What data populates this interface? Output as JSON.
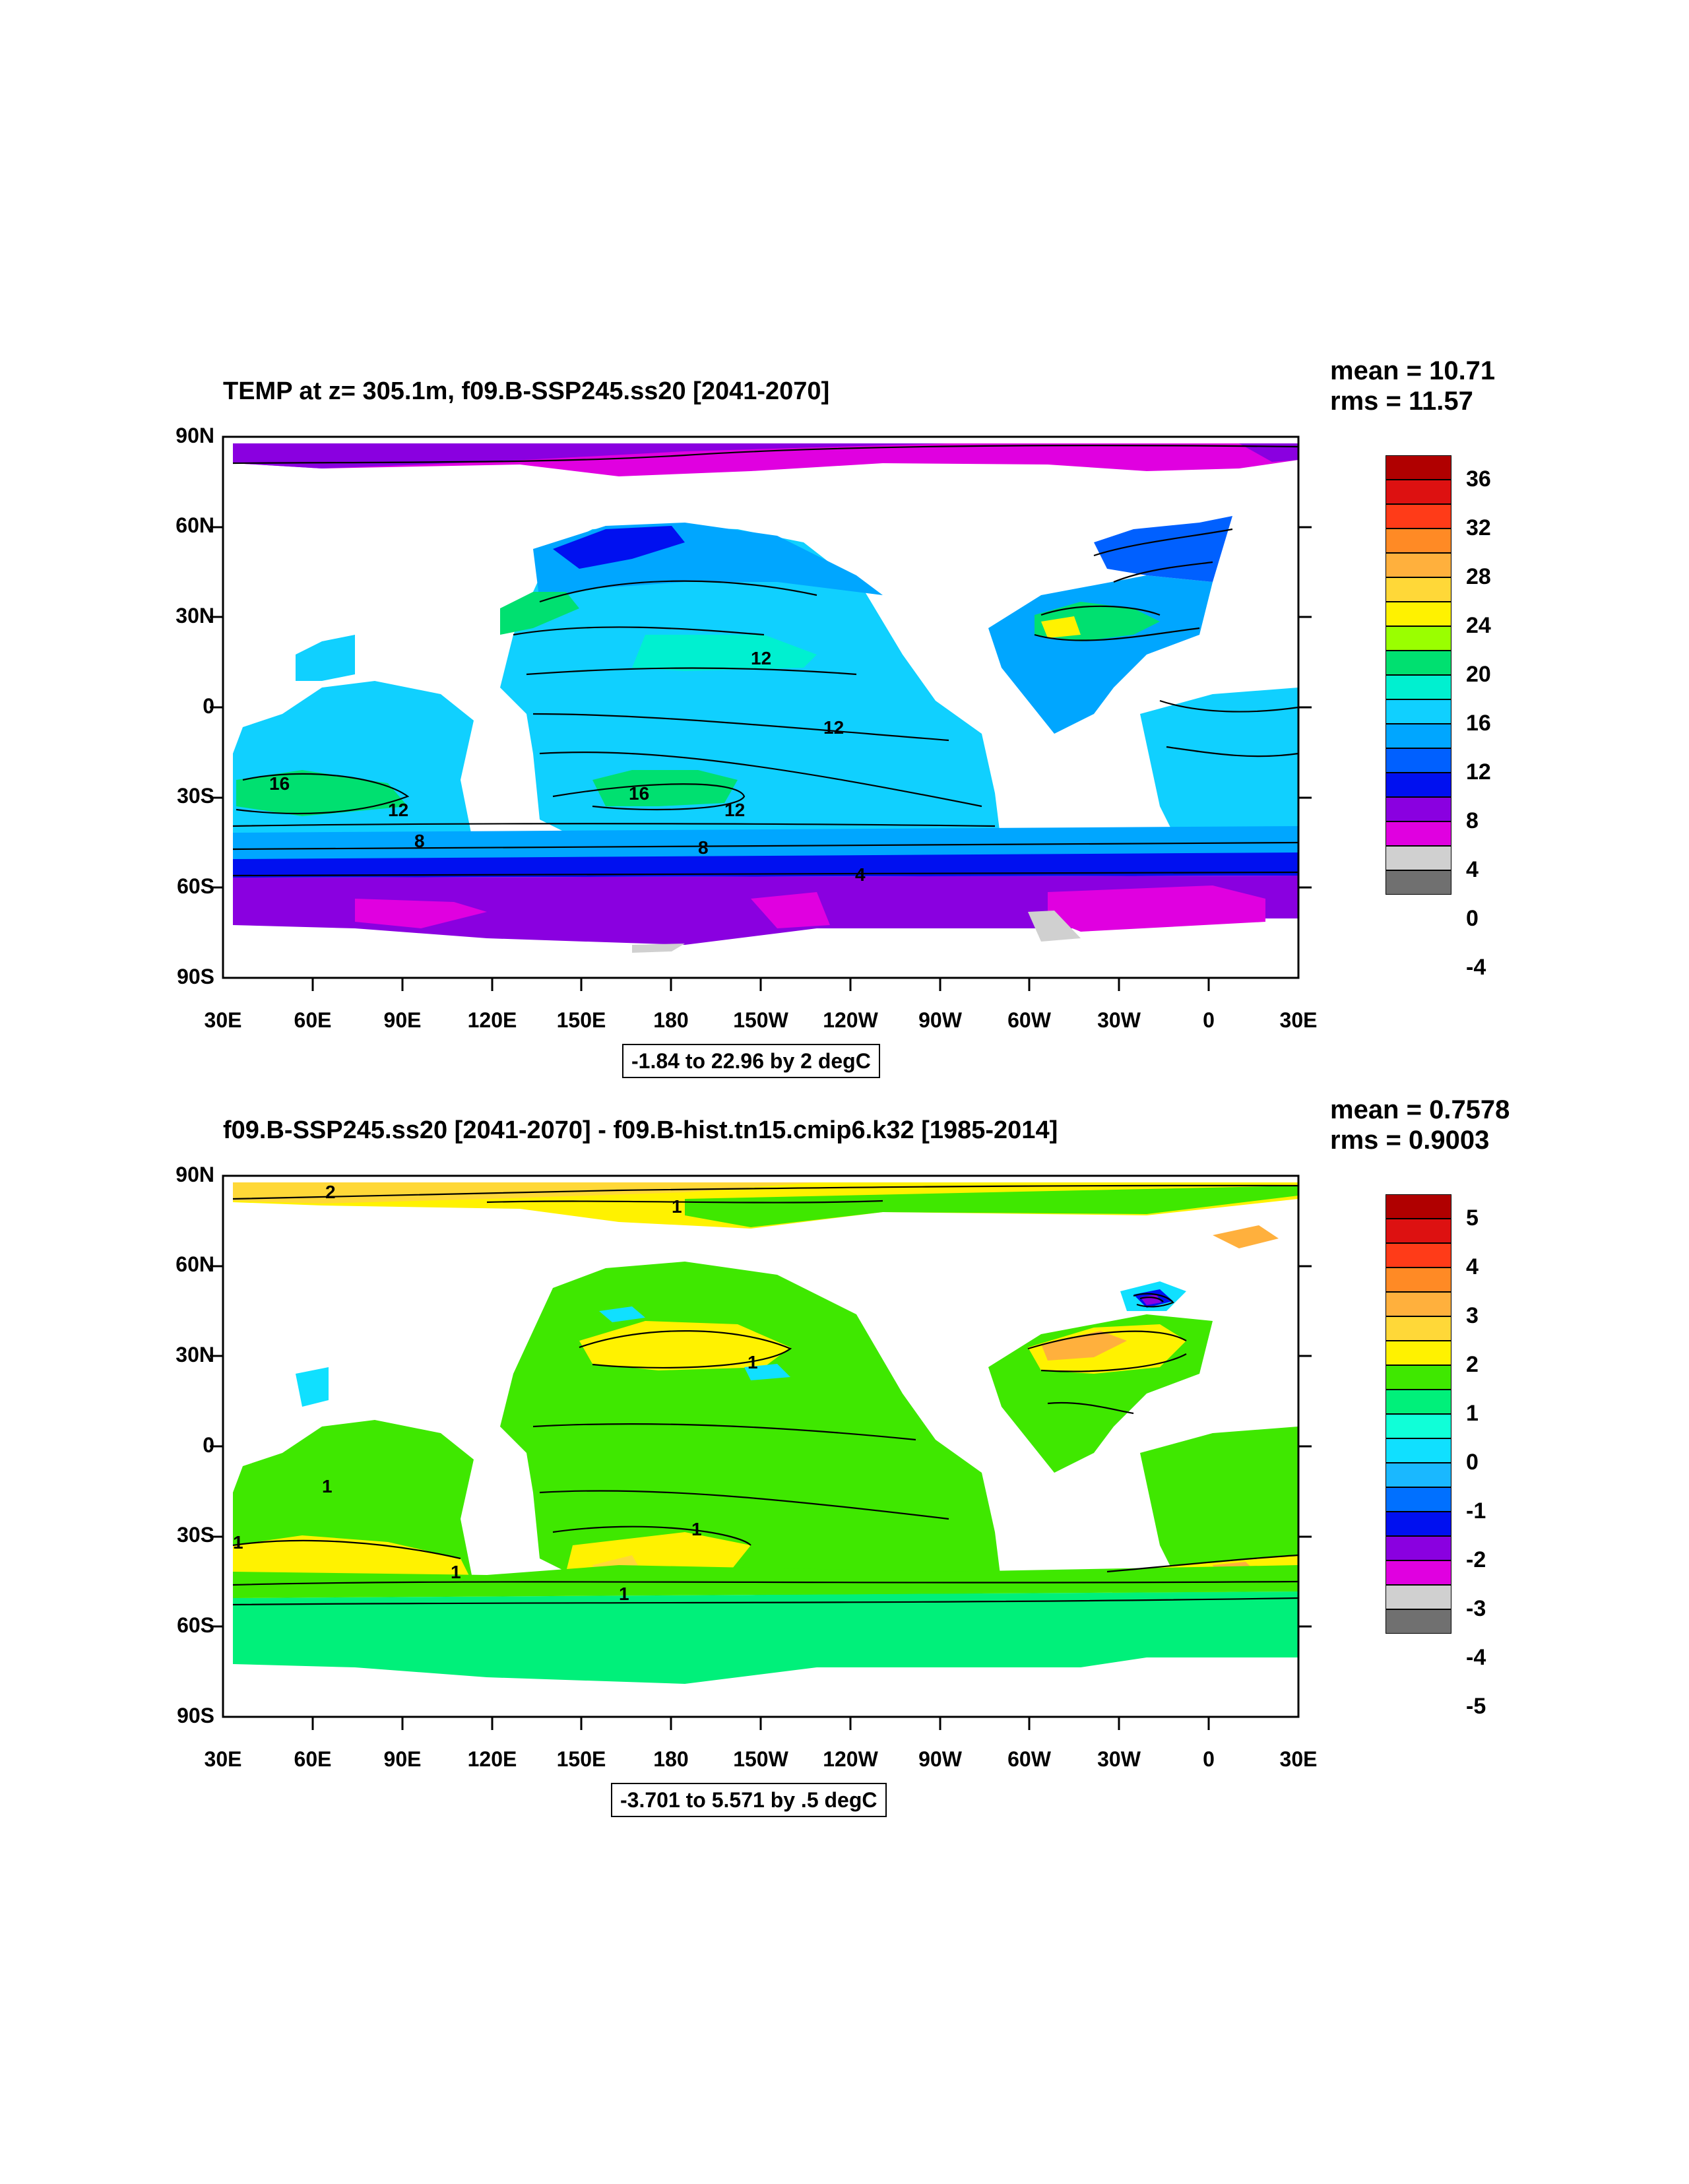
{
  "panels": [
    {
      "title": "TEMP at z= 305.1m, f09.B-SSP245.ss20 [2041-2070]",
      "mean": "mean = 10.71",
      "rms": "rms = 11.57",
      "range_label": "-1.84 to 22.96 by 2 degC",
      "colorbar": {
        "labels": [
          "36",
          "32",
          "28",
          "24",
          "20",
          "16",
          "12",
          "8",
          "4",
          "0",
          "-4"
        ],
        "colors": [
          "#b00000",
          "#dd1111",
          "#ff3b18",
          "#ff8a25",
          "#ffb03d",
          "#ffd838",
          "#fff200",
          "#9aff00",
          "#00e070",
          "#00f0d0",
          "#10d0ff",
          "#00a6ff",
          "#0060ff",
          "#0010f0",
          "#8a00e0",
          "#e000e0",
          "#d0d0d0",
          "#707070"
        ]
      },
      "contour_labels": [
        "12",
        "12",
        "16",
        "16",
        "12",
        "12",
        "8",
        "8",
        "4"
      ]
    },
    {
      "title": "f09.B-SSP245.ss20 [2041-2070] - f09.B-hist.tn15.cmip6.k32 [1985-2014]",
      "mean": "mean = 0.7578",
      "rms": "rms = 0.9003",
      "range_label": "-3.701 to 5.571 by .5 degC",
      "colorbar": {
        "labels": [
          "5",
          "4",
          "3",
          "2",
          "1",
          "0",
          "-1",
          "-2",
          "-3",
          "-4",
          "-5"
        ],
        "colors": [
          "#b00000",
          "#dd1111",
          "#ff3b18",
          "#ff8a25",
          "#ffb03d",
          "#ffd838",
          "#fff200",
          "#3fe800",
          "#00f07a",
          "#10ffd8",
          "#10e0ff",
          "#1ab8ff",
          "#0070ff",
          "#0010f0",
          "#8a00e0",
          "#e000e0",
          "#d0d0d0",
          "#707070"
        ]
      },
      "contour_labels": [
        "2",
        "1",
        "1",
        "1",
        "1",
        "1",
        "1",
        "1"
      ]
    }
  ],
  "axes": {
    "y_labels": [
      "90N",
      "60N",
      "30N",
      "0",
      "30S",
      "60S",
      "90S"
    ],
    "x_labels": [
      "30E",
      "60E",
      "90E",
      "120E",
      "150E",
      "180",
      "150W",
      "120W",
      "90W",
      "60W",
      "30W",
      "0",
      "30E"
    ]
  }
}
